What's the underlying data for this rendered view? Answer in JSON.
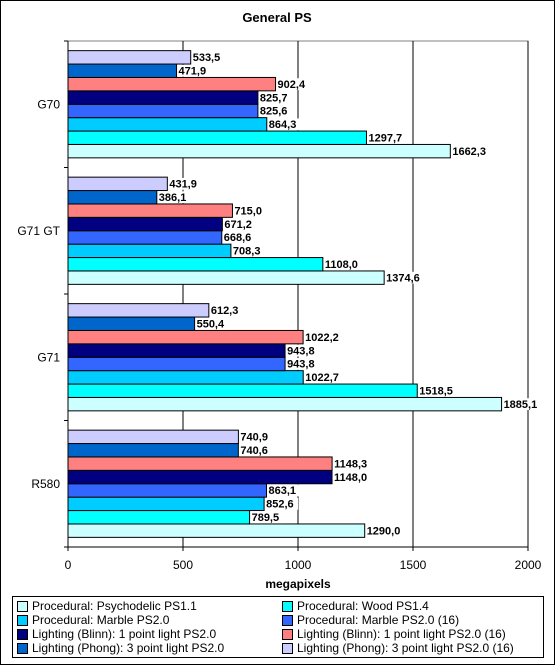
{
  "chart_data": {
    "type": "bar",
    "orientation": "horizontal",
    "title": "General PS",
    "xlabel": "megapixels",
    "ylabel": "",
    "xlim": [
      0,
      2000
    ],
    "xticks": [
      "0",
      "500",
      "1000",
      "1500",
      "2000"
    ],
    "grid": true,
    "legend_position": "bottom",
    "categories": [
      "G70",
      "G71 GT",
      "G71",
      "R580"
    ],
    "series": [
      {
        "name": "Procedural: Psychodelic PS1.1",
        "color": "#ccffff",
        "values": [
          1662.3,
          1374.6,
          1885.1,
          1290.0
        ],
        "labels": [
          "1662,3",
          "1374,6",
          "1885,1",
          "1290,0"
        ]
      },
      {
        "name": "Procedural: Wood PS1.4",
        "color": "#00ffff",
        "values": [
          1297.7,
          1108.0,
          1518.5,
          789.5
        ],
        "labels": [
          "1297,7",
          "1108,0",
          "1518,5",
          "789,5"
        ]
      },
      {
        "name": "Procedural: Marble PS2.0",
        "color": "#00ccff",
        "values": [
          864.3,
          708.3,
          1022.7,
          852.6
        ],
        "labels": [
          "864,3",
          "708,3",
          "1022,7",
          "852,6"
        ]
      },
      {
        "name": "Procedural: Marble PS2.0 (16)",
        "color": "#3366ff",
        "values": [
          825.6,
          668.6,
          943.8,
          863.1
        ],
        "labels": [
          "825,6",
          "668,6",
          "943,8",
          "863,1"
        ]
      },
      {
        "name": "Lighting (Blinn): 1 point light PS2.0",
        "color": "#000080",
        "values": [
          825.7,
          671.2,
          943.8,
          1148.0
        ],
        "labels": [
          "825,7",
          "671,2",
          "943,8",
          "1148,0"
        ]
      },
      {
        "name": "Lighting (Blinn): 1 point light PS2.0 (16)",
        "color": "#ff8080",
        "values": [
          902.4,
          715.0,
          1022.2,
          1148.3
        ],
        "labels": [
          "902,4",
          "715,0",
          "1022,2",
          "1148,3"
        ]
      },
      {
        "name": "Lighting (Phong): 3 point light PS2.0",
        "color": "#0066cc",
        "values": [
          471.9,
          386.1,
          550.4,
          740.6
        ],
        "labels": [
          "471,9",
          "386,1",
          "550,4",
          "740,6"
        ]
      },
      {
        "name": "Lighting (Phong): 3 point light PS2.0 (16)",
        "color": "#ccccff",
        "values": [
          533.5,
          431.9,
          612.3,
          740.9
        ],
        "labels": [
          "533,5",
          "431,9",
          "612,3",
          "740,9"
        ]
      }
    ],
    "legend_order": [
      0,
      1,
      2,
      3,
      4,
      5,
      6,
      7
    ]
  }
}
